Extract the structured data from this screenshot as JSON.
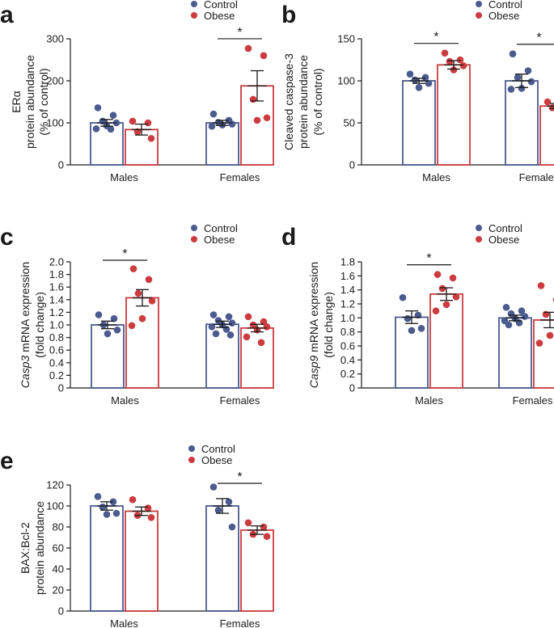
{
  "colors": {
    "control": "#4b5a8f",
    "obese": "#cc3b3f",
    "axis": "#1a1a1a"
  },
  "chart_data": [
    {
      "type": "bar",
      "panel": "a",
      "ylabel_lines": [
        "ERα",
        "protein abundance",
        "(% of control)"
      ],
      "ylim": [
        0,
        300
      ],
      "yticks": [
        0,
        100,
        200,
        300
      ],
      "tick_labels": [
        "0",
        "100",
        "200",
        "300"
      ],
      "categories": [
        "Males",
        "Females"
      ],
      "series": [
        {
          "name": "Control",
          "values": [
            100,
            100
          ],
          "sem": [
            8,
            6
          ],
          "points": [
            [
              136,
              118,
              104,
              100,
              93,
              86,
              85
            ],
            [
              121,
              106,
              101,
              97,
              95,
              92
            ]
          ]
        },
        {
          "name": "Obese",
          "values": [
            84,
            188
          ],
          "sem": [
            13,
            36
          ],
          "points": [
            [
              104,
              100,
              79,
              63
            ],
            [
              277,
              260,
              156,
              112,
              106
            ]
          ]
        }
      ],
      "significance": [
        {
          "category": "Females",
          "label": "*"
        }
      ],
      "legend": [
        "Control",
        "Obese"
      ]
    },
    {
      "type": "bar",
      "panel": "b",
      "ylabel_lines": [
        "Cleaved caspase-3",
        "protein abundance",
        "(% of control)"
      ],
      "ylim": [
        0,
        150
      ],
      "yticks": [
        0,
        50,
        100,
        150
      ],
      "tick_labels": [
        "0",
        "50",
        "100",
        "150"
      ],
      "categories": [
        "Males",
        "Females"
      ],
      "series": [
        {
          "name": "Control",
          "values": [
            100,
            100
          ],
          "sem": [
            3,
            8
          ],
          "points": [
            [
              108,
              104,
              101,
              97,
              92
            ],
            [
              132,
              112,
              104,
              99,
              91,
              90
            ]
          ]
        },
        {
          "name": "Obese",
          "values": [
            119,
            70
          ],
          "sem": [
            5,
            3
          ],
          "points": [
            [
              133,
              125,
              123,
              118,
              113
            ],
            [
              75,
              71,
              68,
              64
            ]
          ]
        }
      ],
      "significance": [
        {
          "category": "Males",
          "label": "*"
        },
        {
          "category": "Females",
          "label": "*"
        }
      ],
      "legend": [
        "Control",
        "Obese"
      ]
    },
    {
      "type": "bar",
      "panel": "c",
      "ylabel_lines": [
        "Casp3 mRNA expression",
        "(fold change)"
      ],
      "ylabel_italic_word": "Casp3",
      "ylim": [
        0,
        2.0
      ],
      "yticks": [
        0,
        0.2,
        0.4,
        0.6,
        0.8,
        1.0,
        1.2,
        1.4,
        1.6,
        1.8,
        2.0
      ],
      "tick_labels": [
        "0",
        "0.2",
        "0.4",
        "0.6",
        "0.8",
        "1.0",
        "1.2",
        "1.4",
        "1.6",
        "1.8",
        "2.0"
      ],
      "categories": [
        "Males",
        "Females"
      ],
      "series": [
        {
          "name": "Control",
          "values": [
            1.0,
            1.01
          ],
          "sem": [
            0.06,
            0.05
          ],
          "points": [
            [
              1.16,
              1.1,
              1.0,
              0.92,
              0.86
            ],
            [
              1.16,
              1.13,
              1.07,
              1.03,
              1.0,
              0.97,
              0.93,
              0.86,
              0.84
            ]
          ]
        },
        {
          "name": "Obese",
          "values": [
            1.43,
            0.95
          ],
          "sem": [
            0.13,
            0.06
          ],
          "points": [
            [
              1.89,
              1.72,
              1.5,
              1.38,
              1.1,
              0.99
            ],
            [
              1.13,
              1.05,
              1.0,
              0.97,
              0.92,
              0.81,
              0.72
            ]
          ]
        }
      ],
      "significance": [
        {
          "category": "Males",
          "label": "*"
        }
      ],
      "legend": [
        "Control",
        "Obese"
      ]
    },
    {
      "type": "bar",
      "panel": "d",
      "ylabel_lines": [
        "Casp9 mRNA expression",
        "(fold change)"
      ],
      "ylabel_italic_word": "Casp9",
      "ylim": [
        0,
        1.8
      ],
      "yticks": [
        0,
        0.2,
        0.4,
        0.6,
        0.8,
        1.0,
        1.2,
        1.4,
        1.6,
        1.8
      ],
      "tick_labels": [
        "0",
        "0.2",
        "0.4",
        "0.6",
        "0.8",
        "1.0",
        "1.2",
        "1.4",
        "1.6",
        "1.8"
      ],
      "categories": [
        "Males",
        "Females"
      ],
      "series": [
        {
          "name": "Control",
          "values": [
            1.01,
            1.0
          ],
          "sem": [
            0.09,
            0.04
          ],
          "points": [
            [
              1.29,
              1.04,
              0.99,
              0.85,
              0.82
            ],
            [
              1.15,
              1.1,
              1.06,
              1.02,
              0.99,
              0.96,
              0.93,
              0.9
            ]
          ]
        },
        {
          "name": "Obese",
          "values": [
            1.34,
            0.97
          ],
          "sem": [
            0.09,
            0.11
          ],
          "points": [
            [
              1.62,
              1.57,
              1.42,
              1.3,
              1.19,
              1.1
            ],
            [
              1.46,
              1.26,
              1.05,
              0.92,
              0.75,
              0.64
            ]
          ]
        }
      ],
      "significance": [
        {
          "category": "Males",
          "label": "*"
        }
      ],
      "legend": [
        "Control",
        "Obese"
      ]
    },
    {
      "type": "bar",
      "panel": "e",
      "ylabel_lines": [
        "BAX:Bcl-2",
        "protein abundance"
      ],
      "ylim": [
        0,
        120
      ],
      "yticks": [
        0,
        20,
        40,
        60,
        80,
        100,
        120
      ],
      "tick_labels": [
        "0",
        "20",
        "40",
        "60",
        "80",
        "100",
        "120"
      ],
      "categories": [
        "Males",
        "Females"
      ],
      "series": [
        {
          "name": "Control",
          "values": [
            100,
            100
          ],
          "sem": [
            4,
            7
          ],
          "points": [
            [
              109,
              104,
              99,
              93,
              92
            ],
            [
              118,
              104,
              96,
              80
            ]
          ]
        },
        {
          "name": "Obese",
          "values": [
            95,
            77
          ],
          "sem": [
            4,
            4
          ],
          "points": [
            [
              106,
              98,
              91,
              89
            ],
            [
              84,
              80,
              73,
              71
            ]
          ]
        }
      ],
      "significance": [
        {
          "category": "Females",
          "label": "*"
        }
      ],
      "legend": [
        "Control",
        "Obese"
      ]
    }
  ]
}
